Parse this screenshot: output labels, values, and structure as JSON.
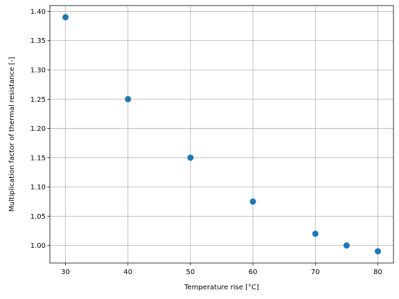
{
  "chart_data": {
    "type": "scatter",
    "title": "",
    "xlabel": "Temperature rise [°C]",
    "ylabel": "Multiplication factor of thermal resistance [-]",
    "xlim": [
      27.5,
      82.5
    ],
    "ylim": [
      0.97,
      1.41
    ],
    "x_ticks": [
      30,
      40,
      50,
      60,
      70,
      80
    ],
    "y_ticks": [
      1.0,
      1.05,
      1.1,
      1.15,
      1.2,
      1.25,
      1.3,
      1.35,
      1.4
    ],
    "grid": true,
    "legend": "none",
    "marker_color": "#1f77b4",
    "points": [
      {
        "x": 30,
        "y": 1.39
      },
      {
        "x": 40,
        "y": 1.25
      },
      {
        "x": 50,
        "y": 1.15
      },
      {
        "x": 60,
        "y": 1.075
      },
      {
        "x": 70,
        "y": 1.02
      },
      {
        "x": 75,
        "y": 1.0
      },
      {
        "x": 80,
        "y": 0.99
      }
    ]
  }
}
